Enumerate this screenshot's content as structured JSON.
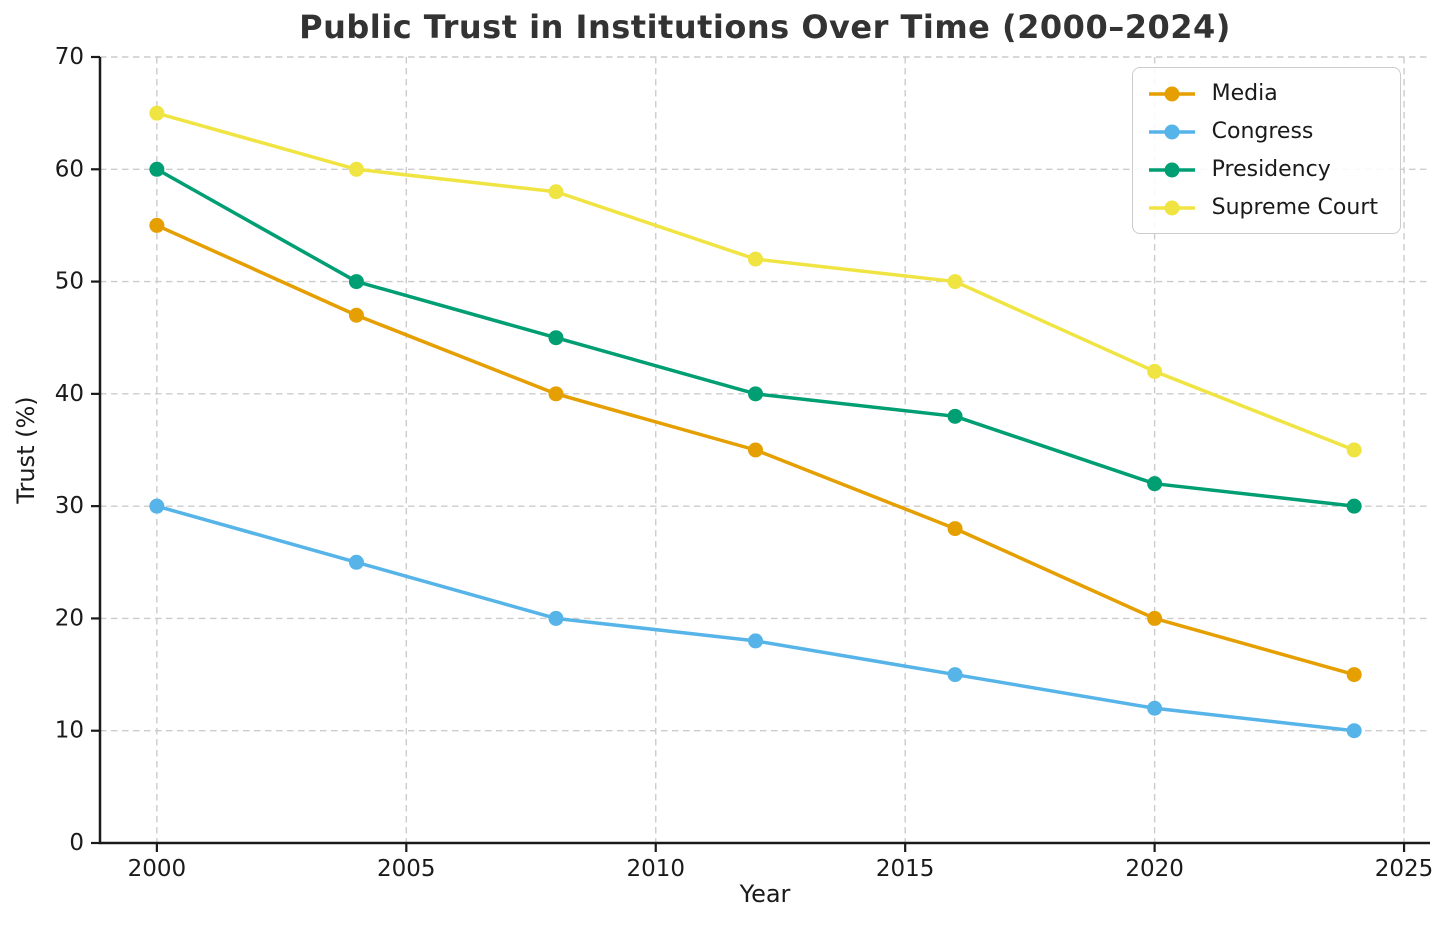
{
  "chart_data": {
    "type": "line",
    "title": "Public Trust in Institutions Over Time (2000–2024)",
    "xlabel": "Year",
    "ylabel": "Trust (%)",
    "x": [
      2000,
      2004,
      2008,
      2012,
      2016,
      2020,
      2024
    ],
    "series": [
      {
        "name": "Media",
        "color": "#E69F00",
        "values": [
          55,
          47,
          40,
          35,
          28,
          20,
          15
        ]
      },
      {
        "name": "Congress",
        "color": "#56B4E9",
        "values": [
          30,
          25,
          20,
          18,
          15,
          12,
          10
        ]
      },
      {
        "name": "Presidency",
        "color": "#009E73",
        "values": [
          60,
          50,
          45,
          40,
          38,
          32,
          30
        ]
      },
      {
        "name": "Supreme Court",
        "color": "#F0E442",
        "values": [
          65,
          60,
          58,
          52,
          50,
          42,
          35
        ]
      }
    ],
    "xlim": [
      1998.86,
      2025.52
    ],
    "ylim": [
      0,
      70
    ],
    "xticks": [
      2000,
      2005,
      2010,
      2015,
      2020,
      2025
    ],
    "yticks": [
      0,
      10,
      20,
      30,
      40,
      50,
      60,
      70
    ],
    "grid": true,
    "grid_style": "dashed",
    "legend_position": "upper right"
  },
  "styles": {
    "grid_color": "#cccccc",
    "spine_color": "#1a1a1a",
    "tick_label_color": "#1a1a1a",
    "title_color": "#333333",
    "background": "#ffffff"
  }
}
